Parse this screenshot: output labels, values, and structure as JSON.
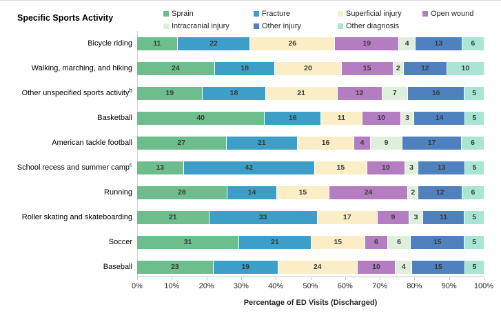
{
  "chart_data": {
    "type": "bar",
    "variant": "horizontal-100pct-stacked",
    "title": "Specific Sports Activity",
    "xlabel": "Percentage of ED Visits (Discharged)",
    "xlim": [
      0,
      100
    ],
    "x_ticks": [
      "0%",
      "10%",
      "20%",
      "30%",
      "40%",
      "50%",
      "60%",
      "70%",
      "80%",
      "90%",
      "100%"
    ],
    "legend_position": "top",
    "series": [
      {
        "name": "Sprain",
        "color": "#6DBE8C"
      },
      {
        "name": "Fracture",
        "color": "#3D9FC7"
      },
      {
        "name": "Superficial injury",
        "color": "#FBEEC6"
      },
      {
        "name": "Open wound",
        "color": "#B47CC1"
      },
      {
        "name": "Intracranial injury",
        "color": "#DEF0DB"
      },
      {
        "name": "Other injury",
        "color": "#4E81BD"
      },
      {
        "name": "Other diagnosis",
        "color": "#A8E5D2"
      }
    ],
    "rows": [
      {
        "label": "Bicycle riding",
        "sup": "",
        "values": [
          11,
          22,
          26,
          19,
          4,
          13,
          6
        ]
      },
      {
        "label": "Walking, marching, and hiking",
        "sup": "",
        "values": [
          24,
          18,
          20,
          15,
          2,
          12,
          10
        ]
      },
      {
        "label": "Other unspecified sports activity",
        "sup": "b",
        "values": [
          19,
          18,
          21,
          12,
          7,
          16,
          5
        ]
      },
      {
        "label": "Basketball",
        "sup": "",
        "values": [
          40,
          16,
          11,
          10,
          3,
          14,
          5
        ]
      },
      {
        "label": "American tackle football",
        "sup": "",
        "values": [
          27,
          21,
          16,
          4,
          9,
          17,
          6
        ]
      },
      {
        "label": "School recess and summer camp",
        "sup": "c",
        "values": [
          13,
          42,
          15,
          10,
          3,
          13,
          5
        ]
      },
      {
        "label": "Running",
        "sup": "",
        "values": [
          28,
          14,
          15,
          24,
          2,
          12,
          6
        ]
      },
      {
        "label": "Roller skating and skateboarding",
        "sup": "",
        "values": [
          21,
          33,
          17,
          9,
          3,
          11,
          5
        ]
      },
      {
        "label": "Soccer",
        "sup": "",
        "values": [
          31,
          21,
          15,
          6,
          6,
          15,
          5
        ]
      },
      {
        "label": "Baseball",
        "sup": "",
        "values": [
          23,
          19,
          24,
          10,
          4,
          15,
          5
        ]
      }
    ]
  }
}
